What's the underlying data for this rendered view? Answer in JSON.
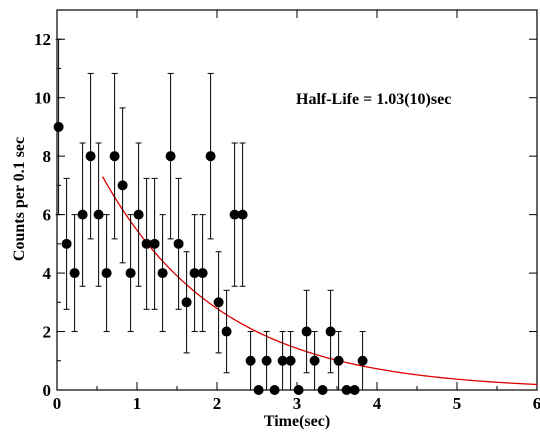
{
  "chart_data": {
    "type": "scatter",
    "title": "",
    "xlabel": "Time(sec)",
    "ylabel": "Counts per 0.1 sec",
    "xlim": [
      0,
      6
    ],
    "ylim": [
      0,
      13
    ],
    "xticks": [
      0,
      1,
      2,
      3,
      4,
      5,
      6
    ],
    "yticks": [
      0,
      2,
      4,
      6,
      8,
      10,
      12
    ],
    "annotation": "Half-Life = 1.03(10)sec",
    "grid": false,
    "colors": {
      "points": "#000000",
      "fit": "#dd0000",
      "frame": "#000000"
    },
    "series": [
      {
        "kind": "points_with_errorbars",
        "points": [
          {
            "x": 0.02,
            "y": 9,
            "err": 3
          },
          {
            "x": 0.12,
            "y": 5,
            "err": 2.24
          },
          {
            "x": 0.22,
            "y": 4,
            "err": 2
          },
          {
            "x": 0.32,
            "y": 6,
            "err": 2.45
          },
          {
            "x": 0.42,
            "y": 8,
            "err": 2.83
          },
          {
            "x": 0.52,
            "y": 6,
            "err": 2.45
          },
          {
            "x": 0.62,
            "y": 4,
            "err": 2
          },
          {
            "x": 0.72,
            "y": 8,
            "err": 2.83
          },
          {
            "x": 0.82,
            "y": 7,
            "err": 2.65
          },
          {
            "x": 0.92,
            "y": 4,
            "err": 2
          },
          {
            "x": 1.02,
            "y": 6,
            "err": 2.45
          },
          {
            "x": 1.12,
            "y": 5,
            "err": 2.24
          },
          {
            "x": 1.22,
            "y": 5,
            "err": 2.24
          },
          {
            "x": 1.32,
            "y": 4,
            "err": 2
          },
          {
            "x": 1.42,
            "y": 8,
            "err": 2.83
          },
          {
            "x": 1.52,
            "y": 5,
            "err": 2.24
          },
          {
            "x": 1.62,
            "y": 3,
            "err": 1.73
          },
          {
            "x": 1.72,
            "y": 4,
            "err": 2
          },
          {
            "x": 1.82,
            "y": 4,
            "err": 2
          },
          {
            "x": 1.92,
            "y": 8,
            "err": 2.83
          },
          {
            "x": 2.02,
            "y": 3,
            "err": 1.73
          },
          {
            "x": 2.12,
            "y": 2,
            "err": 1.41
          },
          {
            "x": 2.22,
            "y": 6,
            "err": 2.45
          },
          {
            "x": 2.32,
            "y": 6,
            "err": 2.45
          },
          {
            "x": 2.42,
            "y": 1,
            "err": 1
          },
          {
            "x": 2.52,
            "y": 0,
            "err": 0
          },
          {
            "x": 2.62,
            "y": 1,
            "err": 1
          },
          {
            "x": 2.72,
            "y": 0,
            "err": 0
          },
          {
            "x": 2.82,
            "y": 1,
            "err": 1
          },
          {
            "x": 2.92,
            "y": 1,
            "err": 1
          },
          {
            "x": 3.02,
            "y": 0,
            "err": 0
          },
          {
            "x": 3.12,
            "y": 2,
            "err": 1.41
          },
          {
            "x": 3.22,
            "y": 1,
            "err": 1
          },
          {
            "x": 3.32,
            "y": 0,
            "err": 0
          },
          {
            "x": 3.42,
            "y": 2,
            "err": 1.41
          },
          {
            "x": 3.52,
            "y": 1,
            "err": 1
          },
          {
            "x": 3.62,
            "y": 0,
            "err": 0
          },
          {
            "x": 3.72,
            "y": 0,
            "err": 0
          },
          {
            "x": 3.82,
            "y": 1,
            "err": 1
          }
        ]
      },
      {
        "kind": "fit_curve",
        "function": "exponential_decay",
        "x_start": 0.57,
        "x_end": 6.0,
        "y_at_start": 7.3,
        "half_life_sec": 1.03
      }
    ]
  }
}
